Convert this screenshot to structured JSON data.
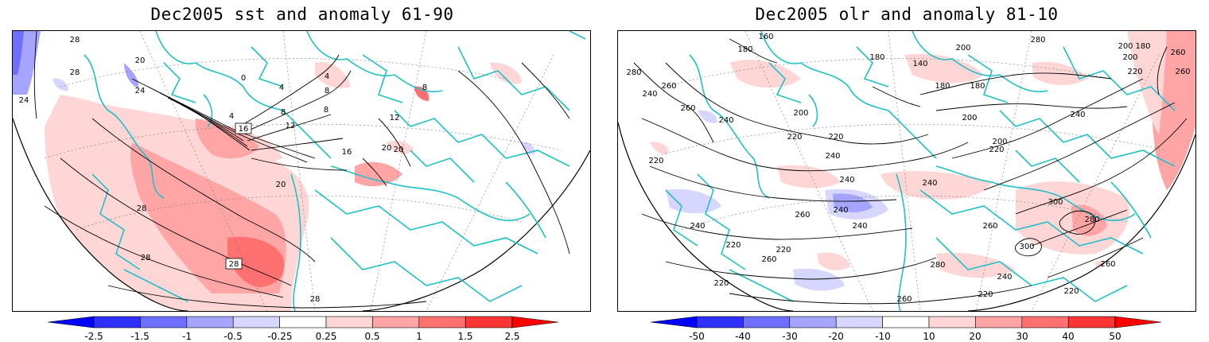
{
  "panels": [
    {
      "title": "Dec2005 sst and anomaly 61-90",
      "contour_labels": [
        "28",
        "20",
        "28",
        "24",
        "24",
        "0",
        "4",
        "4",
        "8",
        "12",
        "16",
        "4",
        "8",
        "16",
        "20",
        "20",
        "28",
        "28",
        "28",
        "28",
        "8",
        "12",
        "20",
        "8"
      ],
      "colorbar": {
        "ticks": [
          "-2.5",
          "-1.5",
          "-1",
          "-0.5",
          "-0.25",
          "0.25",
          "0.5",
          "1",
          "1.5",
          "2.5"
        ],
        "colors": [
          "#2f2fff",
          "#6f6fff",
          "#a5a5ff",
          "#d6d6ff",
          "#ffffff",
          "#ffd6d6",
          "#ffa5a5",
          "#ff7070",
          "#ff3535"
        ]
      }
    },
    {
      "title": "Dec2005 olr and anomaly 81-10",
      "contour_labels": [
        "280",
        "260",
        "240",
        "260",
        "240",
        "220",
        "220",
        "200",
        "220",
        "240",
        "240",
        "260",
        "240",
        "220",
        "220",
        "240",
        "260",
        "280",
        "260",
        "300",
        "300",
        "280",
        "260",
        "240",
        "220",
        "220",
        "220",
        "240",
        "260",
        "180",
        "160",
        "140",
        "180",
        "180",
        "200",
        "180",
        "200",
        "200",
        "180",
        "200",
        "220",
        "240",
        "260",
        "280",
        "260",
        "200",
        "220",
        "240"
      ],
      "colorbar": {
        "ticks": [
          "-50",
          "-40",
          "-30",
          "-20",
          "-10",
          "10",
          "20",
          "30",
          "40",
          "50"
        ],
        "colors": [
          "#2f2fff",
          "#6f6fff",
          "#a5a5ff",
          "#d6d6ff",
          "#ffffff",
          "#ffd6d6",
          "#ffa5a5",
          "#ff7070",
          "#ff3535"
        ]
      }
    }
  ],
  "colors": {
    "coastline": "#1fc0c8",
    "contour": "#000000",
    "frame": "#000000"
  }
}
